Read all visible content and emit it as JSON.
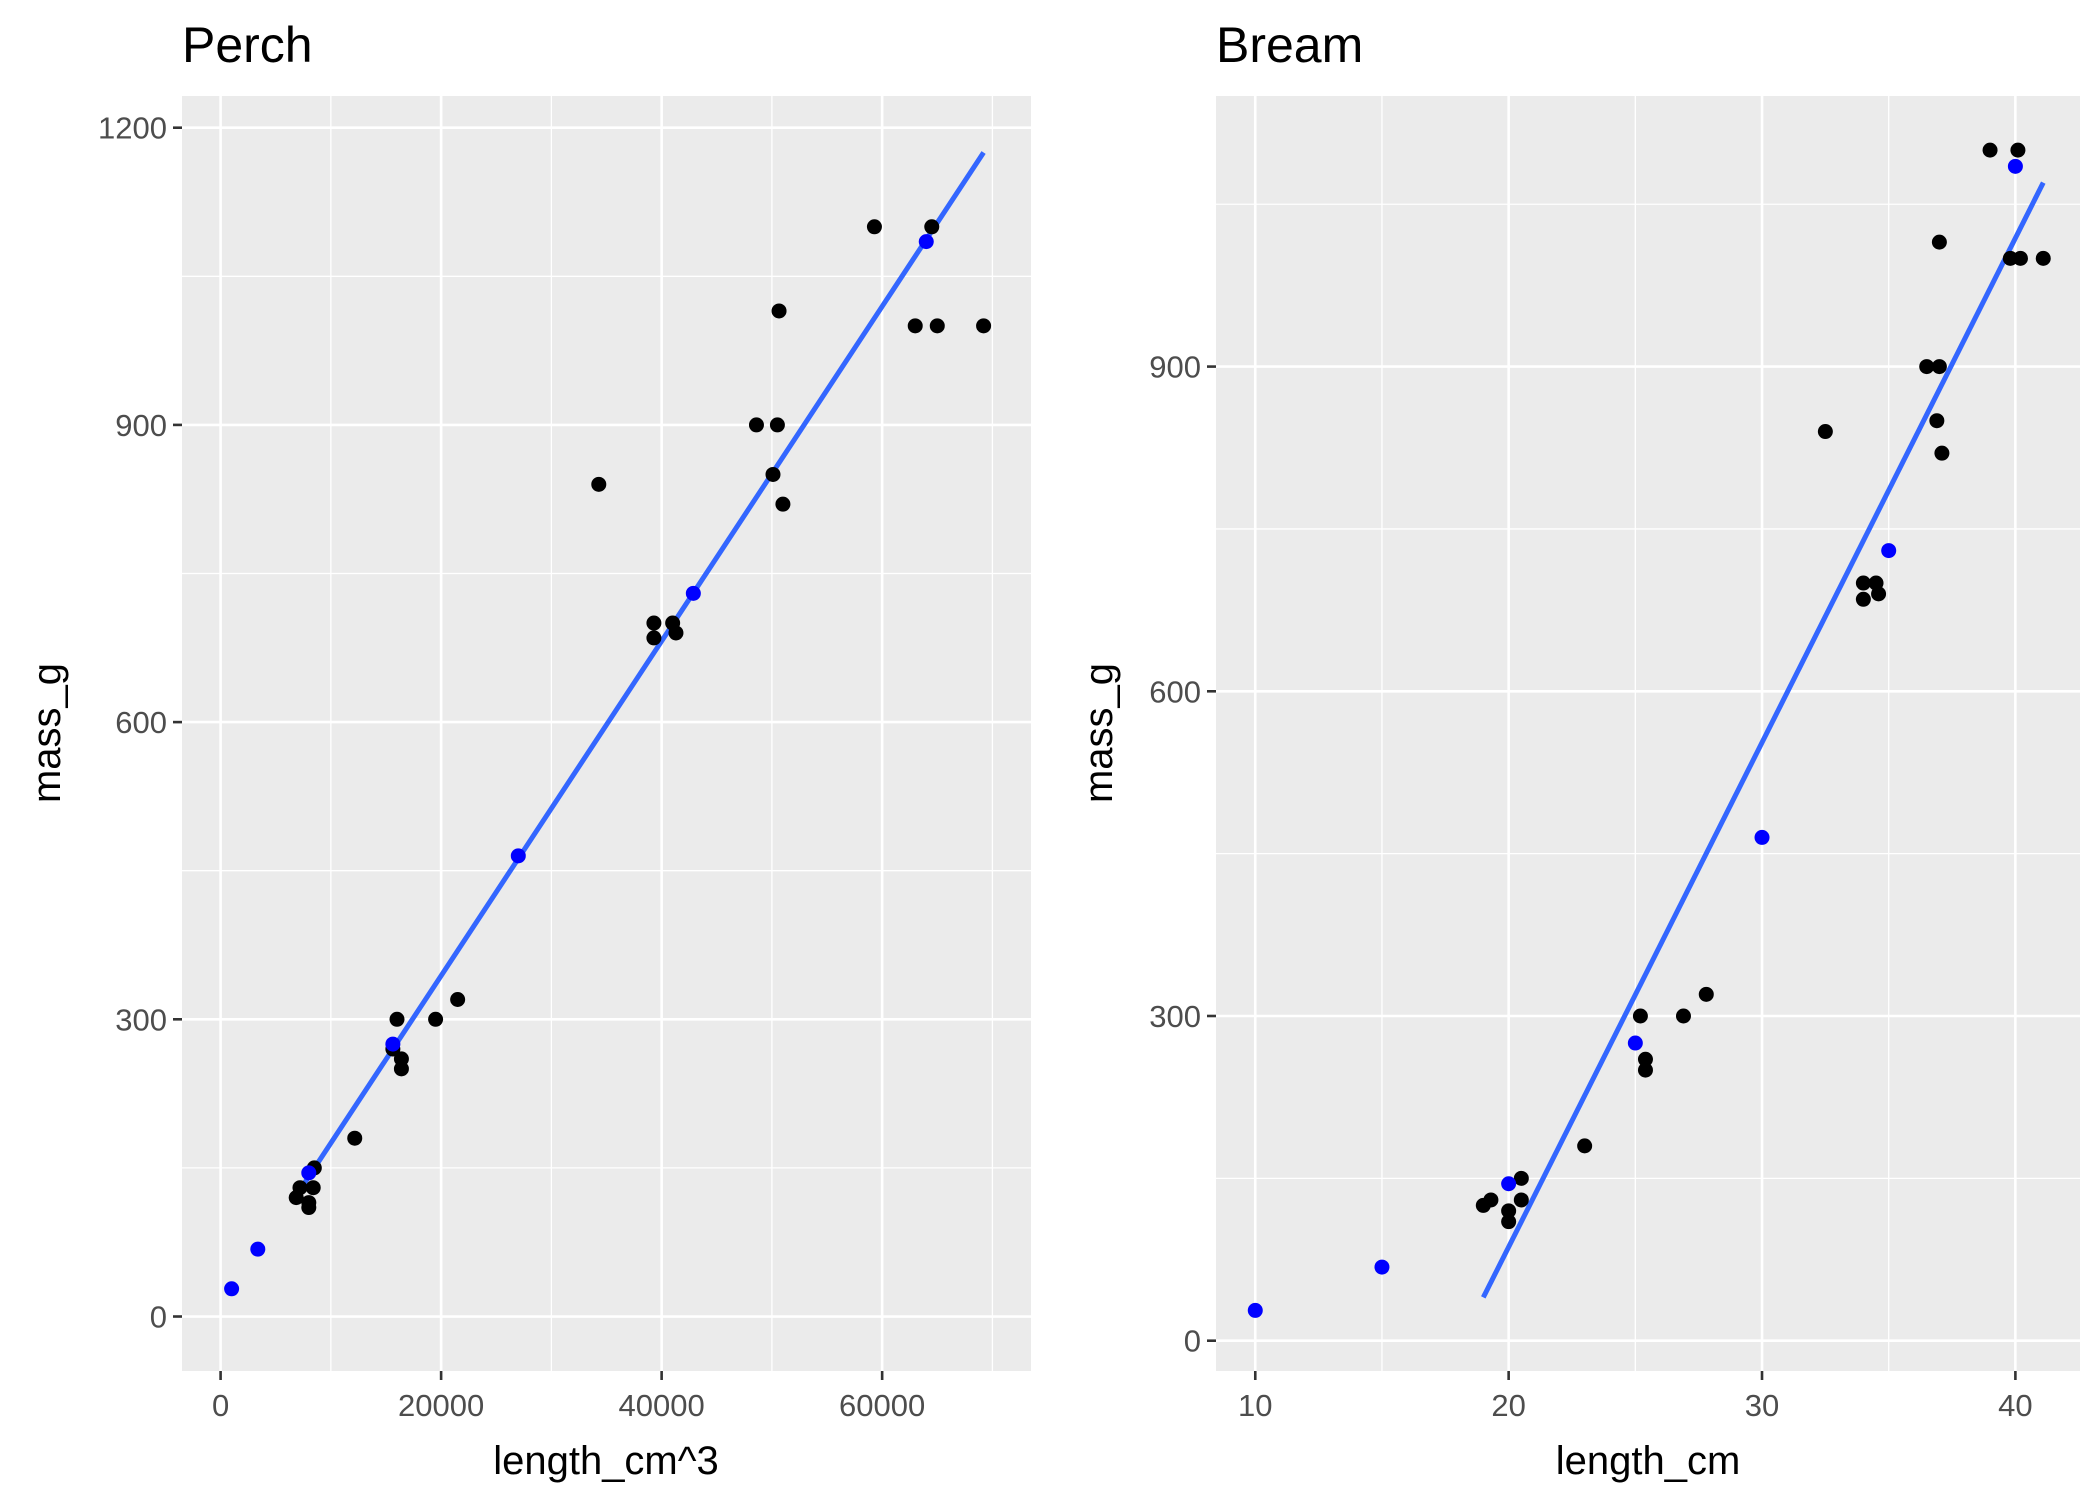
{
  "colors": {
    "observed": "#000000",
    "predicted": "#0000ff",
    "fit": "#3366ff"
  },
  "chart_data": [
    {
      "type": "scatter",
      "title": "Perch",
      "xlabel": "length_cm^3",
      "ylabel": "mass_g",
      "xlim": [
        -3500,
        73500
      ],
      "ylim": [
        -55,
        1232
      ],
      "x_ticks": [
        0,
        20000,
        40000,
        60000
      ],
      "x_tick_labels": [
        "0",
        "20000",
        "40000",
        "60000"
      ],
      "y_ticks": [
        0,
        300,
        600,
        900,
        1200
      ],
      "y_tick_labels": [
        "0",
        "300",
        "600",
        "900",
        "1200"
      ],
      "series": [
        {
          "role": "observed",
          "points": [
            [
              6859,
              120
            ],
            [
              7200,
              130
            ],
            [
              8000,
              115
            ],
            [
              8000,
              110
            ],
            [
              8400,
              130
            ],
            [
              8500,
              150
            ],
            [
              12167,
              180
            ],
            [
              15625,
              270
            ],
            [
              16000,
              300
            ],
            [
              16400,
              250
            ],
            [
              16400,
              260
            ],
            [
              19500,
              300
            ],
            [
              21500,
              320
            ],
            [
              34300,
              840
            ],
            [
              39300,
              685
            ],
            [
              39300,
              700
            ],
            [
              41000,
              700
            ],
            [
              41300,
              690
            ],
            [
              48600,
              900
            ],
            [
              50100,
              850
            ],
            [
              50500,
              900
            ],
            [
              50650,
              1015
            ],
            [
              51000,
              820
            ],
            [
              59300,
              1100
            ],
            [
              63000,
              1000
            ],
            [
              64500,
              1100
            ],
            [
              65000,
              1000
            ],
            [
              69200,
              1000
            ]
          ]
        },
        {
          "role": "predicted",
          "points": [
            [
              1000,
              28
            ],
            [
              3375,
              68
            ],
            [
              8000,
              145
            ],
            [
              15625,
              275
            ],
            [
              27000,
              465
            ],
            [
              42875,
              730
            ],
            [
              64000,
              1085
            ]
          ]
        },
        {
          "role": "fit",
          "points": [
            [
              6859,
              122
            ],
            [
              69200,
              1175
            ]
          ]
        }
      ]
    },
    {
      "type": "scatter",
      "title": "Bream",
      "xlabel": "length_cm",
      "ylabel": "mass_g",
      "xlim": [
        8.45,
        42.55
      ],
      "ylim": [
        -28,
        1150
      ],
      "x_ticks": [
        10,
        20,
        30,
        40
      ],
      "x_tick_labels": [
        "10",
        "20",
        "30",
        "40"
      ],
      "y_ticks": [
        0,
        300,
        600,
        900
      ],
      "y_tick_labels": [
        "0",
        "300",
        "600",
        "900"
      ],
      "series": [
        {
          "role": "observed",
          "points": [
            [
              19.0,
              125
            ],
            [
              19.3,
              130
            ],
            [
              20.0,
              120
            ],
            [
              20.0,
              110
            ],
            [
              20.5,
              150
            ],
            [
              20.5,
              130
            ],
            [
              23.0,
              180
            ],
            [
              25.2,
              300
            ],
            [
              25.4,
              250
            ],
            [
              25.4,
              260
            ],
            [
              26.9,
              300
            ],
            [
              27.8,
              320
            ],
            [
              32.5,
              840
            ],
            [
              34.0,
              685
            ],
            [
              34.0,
              700
            ],
            [
              34.5,
              700
            ],
            [
              34.6,
              690
            ],
            [
              36.5,
              900
            ],
            [
              36.9,
              850
            ],
            [
              37.0,
              900
            ],
            [
              37.0,
              1015
            ],
            [
              37.1,
              820
            ],
            [
              39.0,
              1100
            ],
            [
              39.8,
              1000
            ],
            [
              40.1,
              1100
            ],
            [
              40.2,
              1000
            ],
            [
              41.1,
              1000
            ]
          ]
        },
        {
          "role": "predicted",
          "points": [
            [
              10,
              28
            ],
            [
              15,
              68
            ],
            [
              20,
              145
            ],
            [
              25,
              275
            ],
            [
              30,
              465
            ],
            [
              35,
              730
            ],
            [
              40,
              1085
            ]
          ]
        },
        {
          "role": "fit",
          "points": [
            [
              19.0,
              40
            ],
            [
              41.1,
              1070
            ]
          ]
        }
      ]
    }
  ]
}
